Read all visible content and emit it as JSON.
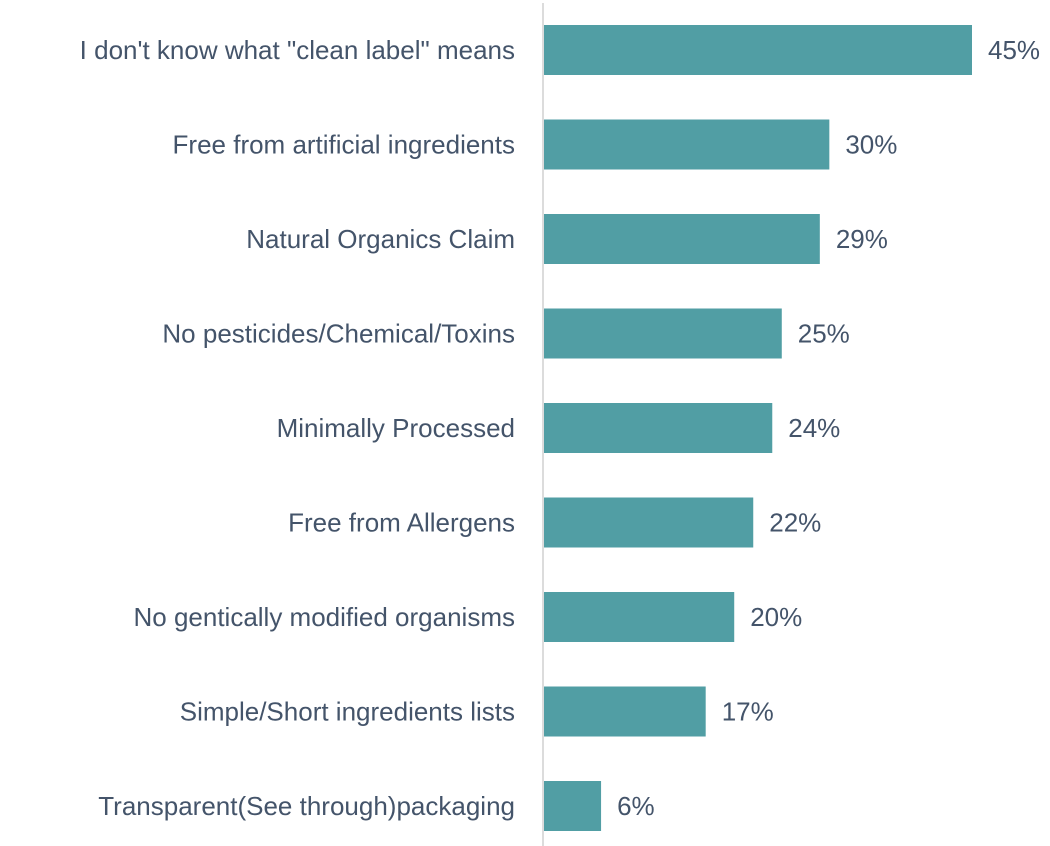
{
  "chart_data": {
    "type": "bar",
    "orientation": "horizontal",
    "categories": [
      "I don't know what \"clean label\" means",
      "Free from artificial ingredients",
      "Natural Organics Claim",
      "No pesticides/Chemical/Toxins",
      "Minimally Processed",
      "Free from Allergens",
      "No gentically modified organisms",
      "Simple/Short ingredients lists",
      "Transparent(See through)packaging"
    ],
    "values": [
      45,
      30,
      29,
      25,
      24,
      22,
      20,
      17,
      6
    ],
    "value_labels": [
      "45%",
      "30%",
      "29%",
      "25%",
      "24%",
      "22%",
      "20%",
      "17%",
      "6%"
    ],
    "color": "#519ea4"
  }
}
